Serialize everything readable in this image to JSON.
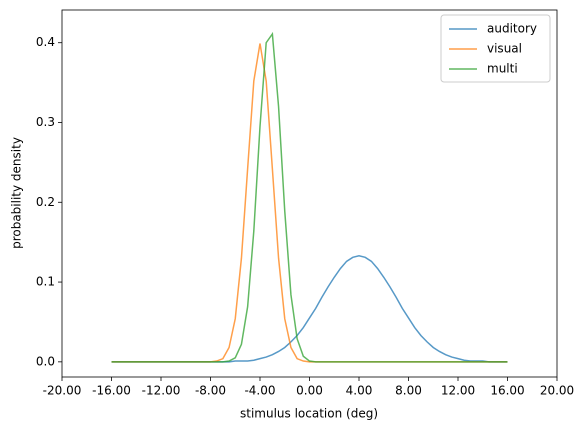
{
  "chart_data": {
    "type": "line",
    "xlabel": "stimulus location (deg)",
    "ylabel": "probability density",
    "x": [
      -16,
      -15.5,
      -15,
      -14.5,
      -14,
      -13.5,
      -13,
      -12.5,
      -12,
      -11.5,
      -11,
      -10.5,
      -10,
      -9.5,
      -9,
      -8.5,
      -8,
      -7.5,
      -7,
      -6.5,
      -6,
      -5.5,
      -5,
      -4.5,
      -4,
      -3.5,
      -3,
      -2.5,
      -2,
      -1.5,
      -1,
      -0.5,
      0,
      0.5,
      1,
      1.5,
      2,
      2.5,
      3,
      3.5,
      4,
      4.5,
      5,
      5.5,
      6,
      6.5,
      7,
      7.5,
      8,
      8.5,
      9,
      9.5,
      10,
      10.5,
      11,
      11.5,
      12,
      12.5,
      13,
      13.5,
      14,
      14.5,
      15,
      15.5,
      16
    ],
    "series": [
      {
        "name": "auditory",
        "color": "#1f77b4",
        "values": [
          0,
          0,
          0,
          0,
          0,
          0,
          0,
          0,
          0,
          0,
          0,
          0,
          0,
          0,
          0,
          0,
          0,
          0,
          0,
          0,
          0.001,
          0.001,
          0.001,
          0.002,
          0.004,
          0.006,
          0.009,
          0.013,
          0.018,
          0.025,
          0.033,
          0.043,
          0.055,
          0.067,
          0.081,
          0.094,
          0.106,
          0.117,
          0.126,
          0.131,
          0.133,
          0.131,
          0.126,
          0.117,
          0.106,
          0.094,
          0.081,
          0.067,
          0.055,
          0.043,
          0.033,
          0.025,
          0.018,
          0.013,
          0.009,
          0.006,
          0.004,
          0.002,
          0.001,
          0.001,
          0.001,
          0,
          0,
          0,
          0
        ]
      },
      {
        "name": "visual",
        "color": "#ff7f0e",
        "values": [
          0,
          0,
          0,
          0,
          0,
          0,
          0,
          0,
          0,
          0,
          0,
          0,
          0,
          0,
          0,
          0,
          0,
          0.001,
          0.004,
          0.018,
          0.054,
          0.13,
          0.242,
          0.352,
          0.399,
          0.352,
          0.242,
          0.13,
          0.054,
          0.018,
          0.004,
          0.001,
          0,
          0,
          0,
          0,
          0,
          0,
          0,
          0,
          0,
          0,
          0,
          0,
          0,
          0,
          0,
          0,
          0,
          0,
          0,
          0,
          0,
          0,
          0,
          0,
          0,
          0,
          0,
          0,
          0,
          0,
          0,
          0,
          0
        ]
      },
      {
        "name": "multi",
        "color": "#2ca02c",
        "values": [
          0,
          0,
          0,
          0,
          0,
          0,
          0,
          0,
          0,
          0,
          0,
          0,
          0,
          0,
          0,
          0,
          0,
          0,
          0,
          0.001,
          0.005,
          0.022,
          0.069,
          0.164,
          0.295,
          0.4,
          0.411,
          0.32,
          0.189,
          0.084,
          0.029,
          0.007,
          0.001,
          0,
          0,
          0,
          0,
          0,
          0,
          0,
          0,
          0,
          0,
          0,
          0,
          0,
          0,
          0,
          0,
          0,
          0,
          0,
          0,
          0,
          0,
          0,
          0,
          0,
          0,
          0,
          0,
          0,
          0,
          0,
          0
        ]
      }
    ],
    "xlim": [
      -20,
      20
    ],
    "xticks": [
      {
        "value": -20,
        "label": "-20.00"
      },
      {
        "value": -16,
        "label": "-16.00"
      },
      {
        "value": -12,
        "label": "-12.00"
      },
      {
        "value": -8,
        "label": "-8.00"
      },
      {
        "value": -4,
        "label": "-4.00"
      },
      {
        "value": 0,
        "label": "0.00"
      },
      {
        "value": 4,
        "label": "4.00"
      },
      {
        "value": 8,
        "label": "8.00"
      },
      {
        "value": 12,
        "label": "12.00"
      },
      {
        "value": 16,
        "label": "16.00"
      },
      {
        "value": 20,
        "label": "20.00"
      }
    ],
    "ylim": [
      -0.019,
      0.441
    ],
    "yticks": [
      {
        "value": 0,
        "label": "0.0"
      },
      0.1,
      0.2,
      0.3,
      0.4
    ],
    "legend": "upper right"
  }
}
